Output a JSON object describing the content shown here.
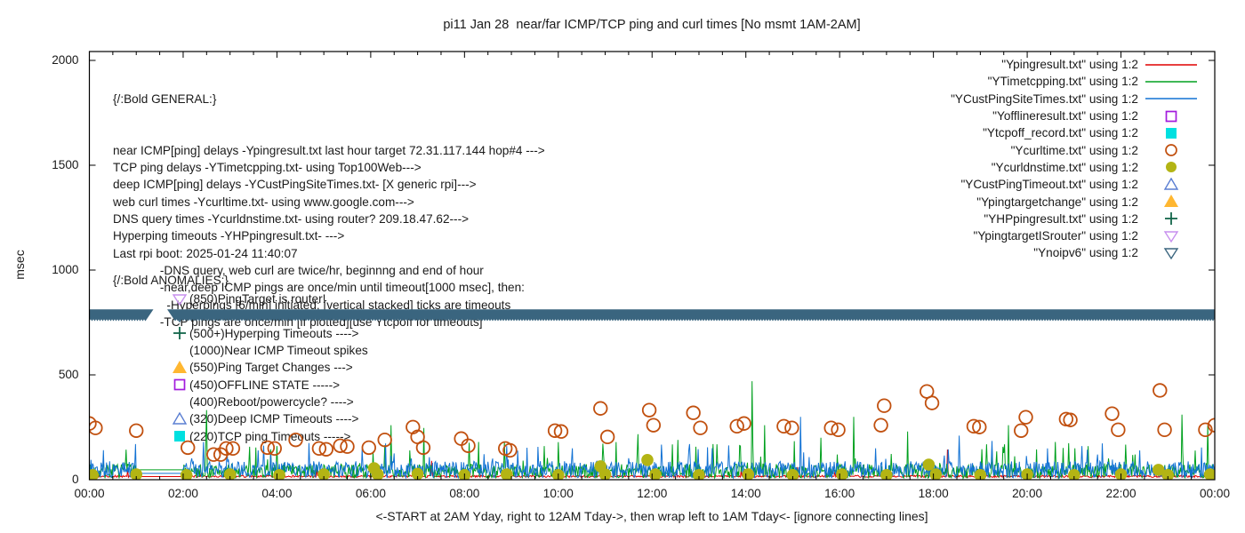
{
  "title": "pi11 Jan 28  near/far ICMP/TCP ping and curl times [No msmt 1AM-2AM]",
  "axes": {
    "ylabel": "msec",
    "xlabel": "<-START at 2AM Yday, right to 12AM Tday->, then wrap left to 1AM Tday<- [ignore connecting lines]",
    "y_ticks": [
      0,
      500,
      1000,
      1500,
      2000
    ],
    "x_ticks": [
      "00:00",
      "02:00",
      "04:00",
      "06:00",
      "08:00",
      "10:00",
      "12:00",
      "14:00",
      "16:00",
      "18:00",
      "20:00",
      "22:00",
      "00:00"
    ]
  },
  "legend": {
    "entries": [
      {
        "label": "\"Ypingresult.txt\" using 1:2",
        "style": "line",
        "color": "#e10000"
      },
      {
        "label": "\"YTimetcpping.txt\" using 1:2",
        "style": "line",
        "color": "#00a01e"
      },
      {
        "label": "\"YCustPingSiteTimes.txt\" using 1:2",
        "style": "line",
        "color": "#1272d4"
      },
      {
        "label": "\"Yofflineresult.txt\" using 1:2",
        "style": "square-open",
        "color": "#a31bdd"
      },
      {
        "label": "\"Ytcpoff_record.txt\" using 1:2",
        "style": "square-filled",
        "color": "#00e0e0"
      },
      {
        "label": "\"Ycurltime.txt\" using 1:2",
        "style": "circle-open",
        "color": "#c1500f"
      },
      {
        "label": "\"Ycurldnstime.txt\" using 1:2",
        "style": "circle-filled",
        "color": "#b3b414"
      },
      {
        "label": "\"YCustPingTimeout.txt\" using 1:2",
        "style": "triangle-open",
        "color": "#5a7ed2"
      },
      {
        "label": "\"Ypingtargetchange\" using 1:2",
        "style": "triangle-filled",
        "color": "#ffb731"
      },
      {
        "label": "\"YHPpingresult.txt\" using 1:2",
        "style": "plus",
        "color": "#13664a"
      },
      {
        "label": "\"YpingtargetISrouter\" using 1:2",
        "style": "triangle-down-open",
        "color": "#c78fee"
      },
      {
        "label": "\"Ynoipv6\" using 1:2",
        "style": "triangle-down-open",
        "color": "#3a657f"
      }
    ]
  },
  "annotations": {
    "general_heading": "{/:Bold GENERAL:}",
    "general": [
      "near ICMP[ping] delays -Ypingresult.txt last hour target 72.31.117.144 hop#4 --->",
      "TCP ping delays -YTimetcpping.txt- using Top100Web--->",
      "deep ICMP[ping] delays -YCustPingSiteTimes.txt- [X generic rpi]--->",
      "web curl times -Ycurltime.txt- using www.google.com--->",
      "DNS query times -Ycurldnstime.txt- using router? 209.18.47.62--->",
      "Hyperping timeouts -YHPpingresult.txt- --->",
      "Last rpi boot: 2025-01-24 11:40:07",
      "              -DNS query, web curl are twice/hr, beginnng and end of hour",
      "              -near,deep ICMP pings are once/min until timeout[1000 msec], then:",
      "                -Hyperpings [6/min] initiated; [vertical stacked] ticks are timeouts",
      "              -TCP pings are once/min [if plotted][use Ytcpoff for timeouts]"
    ],
    "anomalies_heading": "{/:Bold ANOMALIES:}",
    "anomalies": [
      {
        "marker": "triangle-down-open",
        "color": "#c78fee",
        "label": "(850)PingTarget is router!"
      },
      {
        "marker": "triangle-down-open",
        "color": "#3a657f",
        "label": "(785)No v6 fallback -->"
      },
      {
        "marker": "plus",
        "color": "#13664a",
        "label": "(500+)Hyperping Timeouts ---->"
      },
      {
        "marker": null,
        "color": null,
        "label": "(1000)Near ICMP Timeout spikes"
      },
      {
        "marker": "triangle-filled",
        "color": "#ffb731",
        "label": "(550)Ping Target Changes --->"
      },
      {
        "marker": "square-open",
        "color": "#a31bdd",
        "label": "(450)OFFLINE STATE ----->"
      },
      {
        "marker": null,
        "color": null,
        "label": "(400)Reboot/powercycle? ---->"
      },
      {
        "marker": "triangle-open",
        "color": "#5a7ed2",
        "label": "(320)Deep ICMP Timeouts ---->"
      },
      {
        "marker": "square-filled",
        "color": "#00e0e0",
        "label": "(220)TCP ping Timeouts ----->"
      }
    ]
  },
  "chart_data": {
    "type": "line",
    "title": "pi11 Jan 28  near/far ICMP/TCP ping and curl times [No msmt 1AM-2AM]",
    "xlabel": "<-START at 2AM Yday, right to 12AM Tday->, then wrap left to 1AM Tday<- [ignore connecting lines]",
    "ylabel": "msec",
    "xlim_hours": [
      0,
      24
    ],
    "ylim": [
      0,
      2000
    ],
    "x_tick_hours": [
      0,
      2,
      4,
      6,
      8,
      10,
      12,
      14,
      16,
      18,
      20,
      22,
      24
    ],
    "no_measurement_gap_hours": [
      1.0,
      2.0
    ],
    "noise_lines": [
      {
        "name": "Ypingresult.txt near ICMP ping",
        "color": "#e10000",
        "seed": 21,
        "base_min": 11,
        "base_max": 21,
        "spike_p": 0.004,
        "spike_min": 30,
        "spike_max": 60,
        "gap_flat": 15,
        "spikes": [
          [
            7.3,
            90
          ],
          [
            15.1,
            60
          ],
          [
            18.3,
            144
          ]
        ]
      },
      {
        "name": "YTimetcpping.txt TCP ping",
        "color": "#00a01e",
        "seed": 7,
        "base_min": 6,
        "base_max": 74,
        "spike_p": 0.045,
        "spike_min": 75,
        "spike_max": 185,
        "gap_flat": 47,
        "spikes": [
          [
            2.5,
            332
          ],
          [
            4.0,
            160
          ],
          [
            6.43,
            260
          ],
          [
            7.14,
            247
          ],
          [
            8.3,
            180
          ],
          [
            9.7,
            160
          ],
          [
            11.7,
            217
          ],
          [
            12.55,
            190
          ],
          [
            13.3,
            170
          ],
          [
            14.13,
            470
          ],
          [
            14.4,
            260
          ],
          [
            15.6,
            200
          ],
          [
            16.3,
            300
          ],
          [
            17.45,
            230
          ],
          [
            19.6,
            260
          ],
          [
            20.6,
            180
          ],
          [
            21.3,
            160
          ],
          [
            23.3,
            310
          ],
          [
            23.85,
            260
          ]
        ]
      },
      {
        "name": "YCustPingSiteTimes.txt deep ICMP",
        "color": "#1272d4",
        "seed": 13,
        "base_min": 8,
        "base_max": 88,
        "spike_p": 0.035,
        "spike_min": 85,
        "spike_max": 190,
        "gap_flat": 30,
        "spikes": [
          [
            3.6,
            140
          ],
          [
            8.9,
            160
          ],
          [
            10.3,
            150
          ],
          [
            12.8,
            170
          ],
          [
            15.17,
            300
          ],
          [
            16.76,
            150
          ],
          [
            18.55,
            210
          ],
          [
            21.5,
            120
          ],
          [
            22.4,
            140
          ]
        ]
      }
    ],
    "scatter": [
      {
        "name": "Ycurltime.txt web curl times",
        "style": "circle-open",
        "color": "#c1500f",
        "points": [
          [
            0.0,
            268
          ],
          [
            0.13,
            247
          ],
          [
            1.0,
            234
          ],
          [
            2.1,
            153
          ],
          [
            2.65,
            120
          ],
          [
            2.8,
            120
          ],
          [
            2.92,
            149
          ],
          [
            3.06,
            149
          ],
          [
            3.8,
            153
          ],
          [
            3.95,
            149
          ],
          [
            4.4,
            190
          ],
          [
            4.9,
            149
          ],
          [
            5.05,
            145
          ],
          [
            5.35,
            162
          ],
          [
            5.5,
            158
          ],
          [
            5.96,
            153
          ],
          [
            6.3,
            190
          ],
          [
            6.9,
            251
          ],
          [
            7.0,
            204
          ],
          [
            7.12,
            153
          ],
          [
            7.93,
            196
          ],
          [
            8.08,
            162
          ],
          [
            8.87,
            149
          ],
          [
            8.97,
            140
          ],
          [
            9.93,
            234
          ],
          [
            10.06,
            230
          ],
          [
            10.9,
            340
          ],
          [
            11.05,
            204
          ],
          [
            11.94,
            332
          ],
          [
            12.03,
            260
          ],
          [
            12.88,
            319
          ],
          [
            13.03,
            247
          ],
          [
            13.81,
            255
          ],
          [
            13.96,
            268
          ],
          [
            14.81,
            255
          ],
          [
            14.98,
            247
          ],
          [
            15.82,
            247
          ],
          [
            15.97,
            238
          ],
          [
            16.88,
            260
          ],
          [
            16.95,
            353
          ],
          [
            17.86,
            421
          ],
          [
            17.97,
            366
          ],
          [
            18.86,
            255
          ],
          [
            18.98,
            251
          ],
          [
            19.87,
            234
          ],
          [
            19.97,
            298
          ],
          [
            20.83,
            289
          ],
          [
            20.92,
            285
          ],
          [
            21.81,
            315
          ],
          [
            21.94,
            238
          ],
          [
            22.83,
            426
          ],
          [
            22.93,
            238
          ],
          [
            23.8,
            238
          ],
          [
            24.0,
            260
          ]
        ]
      },
      {
        "name": "Ycurldnstime.txt DNS query times",
        "style": "circle-filled",
        "color": "#b3b414",
        "points": [
          [
            0.07,
            22
          ],
          [
            1.0,
            25
          ],
          [
            2.07,
            22
          ],
          [
            3.0,
            25
          ],
          [
            4.05,
            22
          ],
          [
            5.0,
            25
          ],
          [
            6.07,
            55
          ],
          [
            6.15,
            25
          ],
          [
            7.0,
            28
          ],
          [
            8.0,
            22
          ],
          [
            8.9,
            25
          ],
          [
            10.0,
            22
          ],
          [
            10.9,
            64
          ],
          [
            11.0,
            25
          ],
          [
            11.9,
            94
          ],
          [
            12.07,
            25
          ],
          [
            13.0,
            22
          ],
          [
            14.05,
            25
          ],
          [
            15.0,
            22
          ],
          [
            16.05,
            25
          ],
          [
            17.0,
            22
          ],
          [
            17.9,
            72
          ],
          [
            18.05,
            25
          ],
          [
            19.0,
            22
          ],
          [
            20.0,
            25
          ],
          [
            21.0,
            22
          ],
          [
            22.0,
            25
          ],
          [
            22.8,
            47
          ],
          [
            23.0,
            22
          ],
          [
            23.9,
            25
          ]
        ]
      }
    ],
    "band": {
      "name": "Ynoipv6 marker band",
      "style": "triangle-down-filled-strip",
      "color": "#3a657f",
      "y_msec": 785,
      "segments_hours": [
        [
          0,
          1.24
        ],
        [
          1.83,
          24
        ]
      ]
    }
  }
}
